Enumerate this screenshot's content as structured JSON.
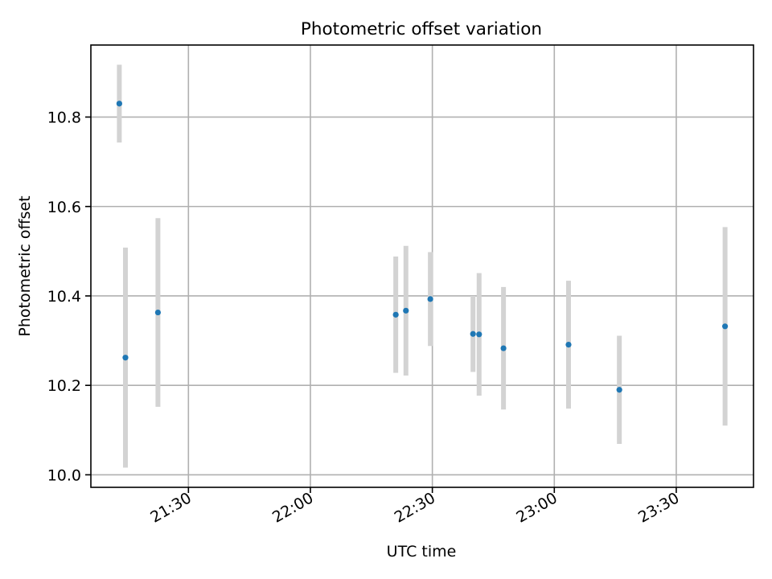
{
  "chart_data": {
    "type": "scatter",
    "title": "Photometric offset variation",
    "xlabel": "UTC time",
    "ylabel": "Photometric offset",
    "xlim": [
      "21:06",
      "23:49"
    ],
    "ylim": [
      9.972,
      10.961
    ],
    "grid": true,
    "x_ticks": [
      "21:30",
      "22:00",
      "22:30",
      "23:00",
      "23:30"
    ],
    "y_ticks": [
      10.0,
      10.2,
      10.4,
      10.6,
      10.8
    ],
    "y_tick_labels": [
      "10.0",
      "10.2",
      "10.4",
      "10.6",
      "10.8"
    ],
    "colors": {
      "points": "#1f77b4",
      "errorbars": "#d3d3d3",
      "grid": "#b0b0b0"
    },
    "series": [
      {
        "points": [
          {
            "x": "21:13:00",
            "y": 10.83,
            "err": 0.087
          },
          {
            "x": "21:14:30",
            "y": 10.262,
            "err": 0.246
          },
          {
            "x": "21:22:30",
            "y": 10.363,
            "err": 0.211
          },
          {
            "x": "22:21:00",
            "y": 10.358,
            "err": 0.13
          },
          {
            "x": "22:23:30",
            "y": 10.367,
            "err": 0.145
          },
          {
            "x": "22:29:30",
            "y": 10.393,
            "err": 0.105
          },
          {
            "x": "22:40:00",
            "y": 10.315,
            "err": 0.085
          },
          {
            "x": "22:41:30",
            "y": 10.314,
            "err": 0.137
          },
          {
            "x": "22:47:30",
            "y": 10.283,
            "err": 0.137
          },
          {
            "x": "23:03:30",
            "y": 10.291,
            "err": 0.143
          },
          {
            "x": "23:16:00",
            "y": 10.19,
            "err": 0.121
          },
          {
            "x": "23:42:00",
            "y": 10.332,
            "err": 0.222
          }
        ]
      }
    ]
  }
}
